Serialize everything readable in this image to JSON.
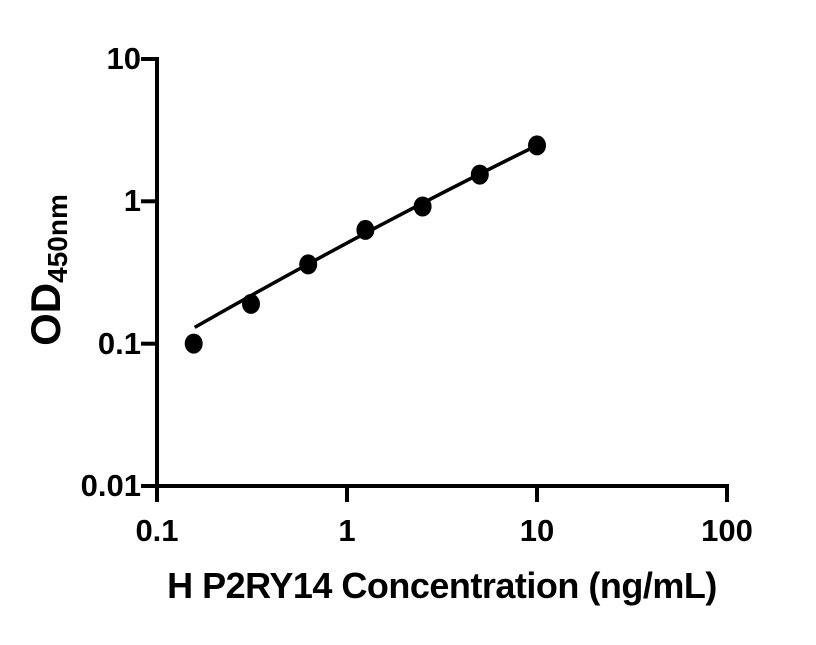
{
  "figure": {
    "background_color": "#ffffff",
    "ink_color": "#000000"
  },
  "chart_data": {
    "type": "scatter",
    "title": "",
    "xlabel": "H P2RY14 Concentration (ng/mL)",
    "ylabel_main": "OD",
    "ylabel_sub": "450nm",
    "x_scale": "log10",
    "y_scale": "log10",
    "xlim": [
      0.1,
      100
    ],
    "ylim": [
      0.01,
      10
    ],
    "x_ticks": [
      0.1,
      1,
      10,
      100
    ],
    "x_tick_labels": [
      "0.1",
      "1",
      "10",
      "100"
    ],
    "y_ticks": [
      10,
      1,
      0.1,
      0.01
    ],
    "y_tick_labels": [
      "10",
      "1",
      "0.1",
      "0.01"
    ],
    "grid": false,
    "legend": "none",
    "series": [
      {
        "name": "standard curve data points",
        "marker": "filled-circle",
        "color": "#000000",
        "x": [
          0.156,
          0.3125,
          0.625,
          1.25,
          2.5,
          5,
          10
        ],
        "y": [
          0.1,
          0.19,
          0.36,
          0.63,
          0.92,
          1.54,
          2.47
        ]
      }
    ],
    "fit_line": {
      "description": "log-log linear fit through the standards",
      "anchors_x": [
        0.158,
        1.26,
        10
      ],
      "anchors_y": [
        0.13,
        0.6,
        2.47
      ]
    }
  }
}
